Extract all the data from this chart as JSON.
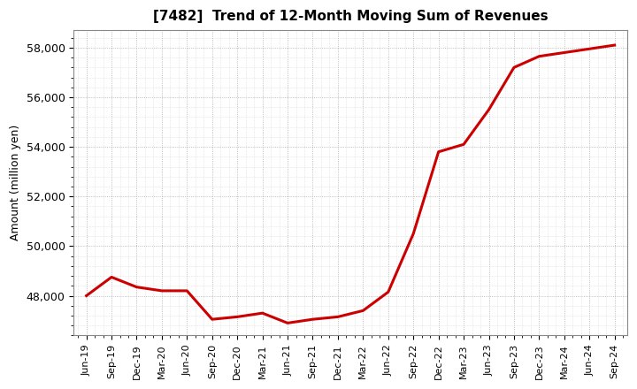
{
  "title": "[7482]  Trend of 12-Month Moving Sum of Revenues",
  "ylabel": "Amount (million yen)",
  "line_color": "#cc0000",
  "line_width": 2.2,
  "background_color": "#ffffff",
  "plot_bg_color": "#ffffff",
  "ylim": [
    46400,
    58700
  ],
  "yticks": [
    48000,
    50000,
    52000,
    54000,
    56000,
    58000
  ],
  "x_labels": [
    "Jun-19",
    "Sep-19",
    "Dec-19",
    "Mar-20",
    "Jun-20",
    "Sep-20",
    "Dec-20",
    "Mar-21",
    "Jun-21",
    "Sep-21",
    "Dec-21",
    "Mar-22",
    "Jun-22",
    "Sep-22",
    "Dec-22",
    "Mar-23",
    "Jun-23",
    "Sep-23",
    "Dec-23",
    "Mar-24",
    "Jun-24",
    "Sep-24"
  ],
  "values": [
    48000,
    48750,
    48350,
    48200,
    48200,
    47050,
    47150,
    47300,
    46900,
    47050,
    47150,
    47400,
    48150,
    50500,
    53800,
    54100,
    55500,
    57200,
    57650,
    57800,
    57950,
    58100
  ],
  "grid_color": "#aaaaaa",
  "grid_linestyle": ":",
  "grid_linewidth": 0.6,
  "spine_color": "#888888",
  "title_fontsize": 11,
  "ylabel_fontsize": 9,
  "tick_fontsize": 9,
  "xtick_fontsize": 8
}
